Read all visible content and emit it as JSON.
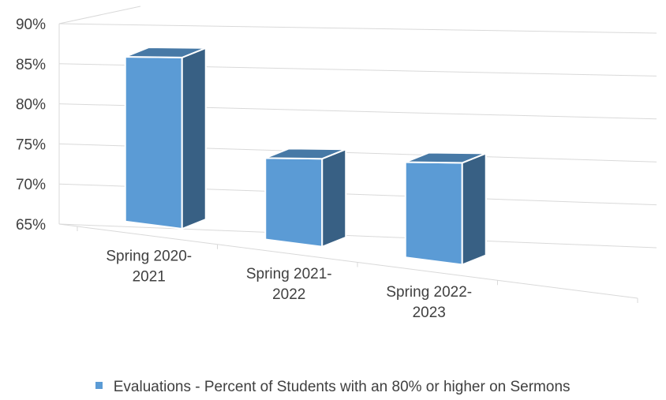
{
  "chart_data": {
    "type": "bar",
    "categories": [
      "Spring 2020-2021",
      "Spring 2021-2022",
      "Spring 2022-2023"
    ],
    "category_lines": [
      [
        "Spring 2020-",
        "2021"
      ],
      [
        "Spring 2021-",
        "2022"
      ],
      [
        "Spring 2022-",
        "2023"
      ]
    ],
    "series": [
      {
        "name": "Evaluations - Percent of Students with an 80% or higher on Sermons",
        "values": [
          88,
          76,
          76
        ],
        "color": "#5B9BD5"
      }
    ],
    "ylim": [
      65,
      90
    ],
    "yticks": [
      "65%",
      "70%",
      "75%",
      "80%",
      "85%",
      "90%"
    ],
    "ytick_values": [
      65,
      70,
      75,
      80,
      85,
      90
    ],
    "grid": true,
    "legend": "bottom",
    "style": "3d-column"
  }
}
